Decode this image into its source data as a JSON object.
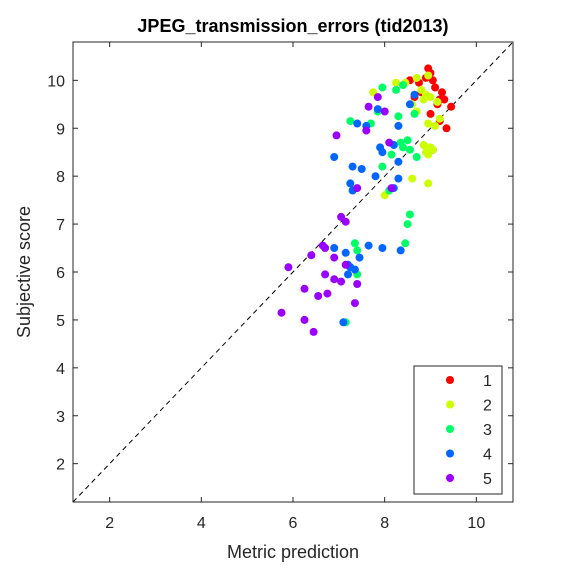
{
  "chart_data": {
    "type": "scatter",
    "title": "JPEG_transmission_errors (tid2013)",
    "xlabel": "Metric prediction",
    "ylabel": "Subjective score",
    "xlim": [
      1.2,
      10.8
    ],
    "ylim": [
      1.2,
      10.8
    ],
    "xticks": [
      2,
      4,
      6,
      8,
      10
    ],
    "yticks": [
      2,
      3,
      4,
      5,
      6,
      7,
      8,
      9,
      10
    ],
    "grid": false,
    "reference_line": "y = x (dashed)",
    "legend_position": "bottom-right",
    "series": [
      {
        "name": "1",
        "color": "#ff0000",
        "points": [
          [
            8.55,
            10.0
          ],
          [
            8.65,
            9.65
          ],
          [
            8.8,
            9.75
          ],
          [
            8.95,
            10.25
          ],
          [
            9.0,
            10.15
          ],
          [
            9.05,
            10.0
          ],
          [
            9.1,
            9.85
          ],
          [
            9.2,
            9.6
          ],
          [
            9.3,
            9.6
          ],
          [
            9.15,
            9.5
          ],
          [
            9.45,
            9.45
          ],
          [
            9.0,
            9.3
          ],
          [
            9.2,
            9.15
          ],
          [
            9.35,
            9.0
          ],
          [
            9.05,
            8.55
          ],
          [
            8.75,
            9.95
          ],
          [
            9.25,
            9.75
          ],
          [
            8.9,
            10.05
          ]
        ]
      },
      {
        "name": "2",
        "color": "#ccff00",
        "points": [
          [
            7.75,
            9.75
          ],
          [
            8.25,
            9.95
          ],
          [
            8.45,
            9.95
          ],
          [
            8.7,
            10.05
          ],
          [
            8.95,
            10.1
          ],
          [
            8.8,
            9.8
          ],
          [
            8.9,
            9.7
          ],
          [
            9.0,
            9.65
          ],
          [
            8.85,
            9.6
          ],
          [
            9.15,
            9.55
          ],
          [
            8.6,
            9.5
          ],
          [
            8.7,
            9.35
          ],
          [
            9.2,
            9.2
          ],
          [
            8.95,
            9.1
          ],
          [
            9.1,
            9.05
          ],
          [
            8.85,
            8.65
          ],
          [
            9.0,
            8.6
          ],
          [
            8.95,
            8.45
          ],
          [
            8.9,
            8.5
          ],
          [
            8.6,
            7.95
          ],
          [
            8.95,
            7.85
          ],
          [
            8.0,
            7.6
          ],
          [
            9.05,
            8.55
          ]
        ]
      },
      {
        "name": "3",
        "color": "#00ff66",
        "points": [
          [
            7.95,
            9.85
          ],
          [
            8.4,
            9.9
          ],
          [
            8.25,
            9.8
          ],
          [
            7.85,
            9.35
          ],
          [
            7.25,
            9.15
          ],
          [
            7.7,
            9.1
          ],
          [
            8.5,
            8.75
          ],
          [
            8.35,
            8.7
          ],
          [
            8.4,
            8.6
          ],
          [
            8.55,
            8.55
          ],
          [
            8.15,
            8.45
          ],
          [
            8.7,
            8.4
          ],
          [
            7.95,
            8.2
          ],
          [
            8.1,
            7.7
          ],
          [
            8.55,
            7.2
          ],
          [
            8.5,
            7.0
          ],
          [
            8.45,
            6.6
          ],
          [
            7.35,
            6.6
          ],
          [
            7.4,
            6.45
          ],
          [
            7.25,
            6.1
          ],
          [
            7.4,
            5.95
          ],
          [
            7.15,
            4.95
          ],
          [
            8.3,
            9.25
          ],
          [
            8.65,
            9.3
          ]
        ]
      },
      {
        "name": "4",
        "color": "#0066ff",
        "points": [
          [
            7.4,
            9.1
          ],
          [
            7.6,
            9.05
          ],
          [
            8.3,
            9.05
          ],
          [
            8.55,
            9.5
          ],
          [
            8.65,
            9.7
          ],
          [
            7.85,
            9.4
          ],
          [
            8.2,
            8.65
          ],
          [
            7.9,
            8.6
          ],
          [
            6.9,
            8.4
          ],
          [
            7.3,
            8.2
          ],
          [
            7.5,
            8.15
          ],
          [
            7.95,
            8.5
          ],
          [
            8.3,
            8.3
          ],
          [
            7.8,
            8.0
          ],
          [
            8.3,
            7.95
          ],
          [
            8.2,
            7.75
          ],
          [
            7.25,
            7.85
          ],
          [
            7.3,
            7.7
          ],
          [
            7.65,
            6.55
          ],
          [
            7.95,
            6.5
          ],
          [
            8.35,
            6.45
          ],
          [
            7.15,
            6.4
          ],
          [
            7.45,
            6.3
          ],
          [
            7.2,
            6.15
          ],
          [
            7.25,
            6.1
          ],
          [
            7.35,
            6.05
          ],
          [
            7.2,
            5.95
          ],
          [
            7.1,
            4.95
          ],
          [
            6.9,
            6.5
          ]
        ]
      },
      {
        "name": "5",
        "color": "#9900ff",
        "points": [
          [
            6.95,
            8.85
          ],
          [
            7.6,
            8.95
          ],
          [
            8.1,
            8.7
          ],
          [
            7.4,
            7.75
          ],
          [
            8.15,
            7.75
          ],
          [
            7.05,
            7.15
          ],
          [
            7.15,
            7.05
          ],
          [
            6.65,
            6.55
          ],
          [
            6.7,
            6.5
          ],
          [
            6.4,
            6.35
          ],
          [
            6.9,
            6.3
          ],
          [
            7.15,
            6.15
          ],
          [
            5.9,
            6.1
          ],
          [
            6.7,
            5.95
          ],
          [
            6.9,
            5.85
          ],
          [
            7.4,
            5.75
          ],
          [
            7.05,
            5.8
          ],
          [
            6.25,
            5.65
          ],
          [
            6.55,
            5.5
          ],
          [
            6.75,
            5.55
          ],
          [
            7.35,
            5.35
          ],
          [
            5.75,
            5.15
          ],
          [
            6.25,
            5.0
          ],
          [
            6.45,
            4.75
          ],
          [
            7.85,
            9.65
          ],
          [
            7.65,
            9.45
          ],
          [
            8.0,
            9.35
          ]
        ]
      }
    ]
  }
}
